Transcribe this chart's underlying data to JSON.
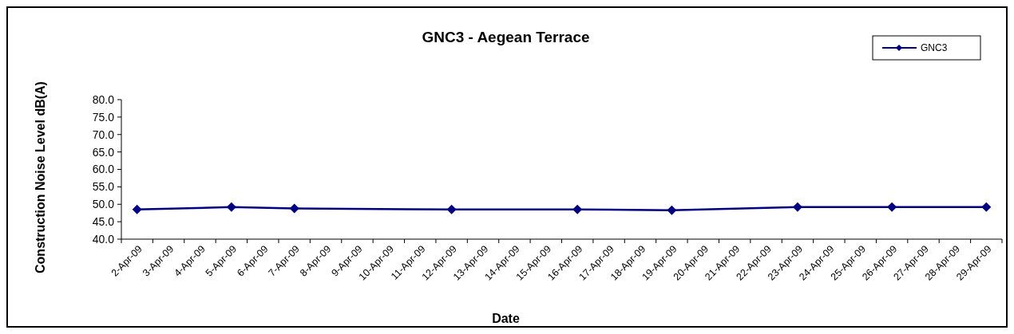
{
  "chart_data": {
    "type": "line",
    "title": "GNC3  -  Aegean Terrace",
    "xlabel": "Date",
    "ylabel": "Construction Noise Level  dB(A)",
    "categories": [
      "2-Apr-09",
      "3-Apr-09",
      "4-Apr-09",
      "5-Apr-09",
      "6-Apr-09",
      "7-Apr-09",
      "8-Apr-09",
      "9-Apr-09",
      "10-Apr-09",
      "11-Apr-09",
      "12-Apr-09",
      "13-Apr-09",
      "14-Apr-09",
      "15-Apr-09",
      "16-Apr-09",
      "17-Apr-09",
      "18-Apr-09",
      "19-Apr-09",
      "20-Apr-09",
      "21-Apr-09",
      "22-Apr-09",
      "23-Apr-09",
      "24-Apr-09",
      "25-Apr-09",
      "26-Apr-09",
      "27-Apr-09",
      "28-Apr-09",
      "29-Apr-09"
    ],
    "series": [
      {
        "name": "GNC3",
        "color": "#000080",
        "x": [
          "2-Apr-09",
          "5-Apr-09",
          "7-Apr-09",
          "12-Apr-09",
          "16-Apr-09",
          "19-Apr-09",
          "23-Apr-09",
          "26-Apr-09",
          "29-Apr-09"
        ],
        "values": [
          48.5,
          49.2,
          48.8,
          48.5,
          48.5,
          48.3,
          49.2,
          49.2,
          49.2
        ]
      }
    ],
    "ylim": [
      40,
      80
    ],
    "yticks": [
      {
        "value": 40,
        "label": "40.0"
      },
      {
        "value": 45,
        "label": "45.0"
      },
      {
        "value": 50,
        "label": "50.0"
      },
      {
        "value": 55,
        "label": "55.0"
      },
      {
        "value": 60,
        "label": "60.0"
      },
      {
        "value": 65,
        "label": "65.0"
      },
      {
        "value": 70,
        "label": "70.0"
      },
      {
        "value": 75,
        "label": "75.0"
      },
      {
        "value": 80,
        "label": "80.0"
      }
    ],
    "marker": "diamond",
    "line_style": "solid",
    "grid": false,
    "legend": "top right"
  }
}
